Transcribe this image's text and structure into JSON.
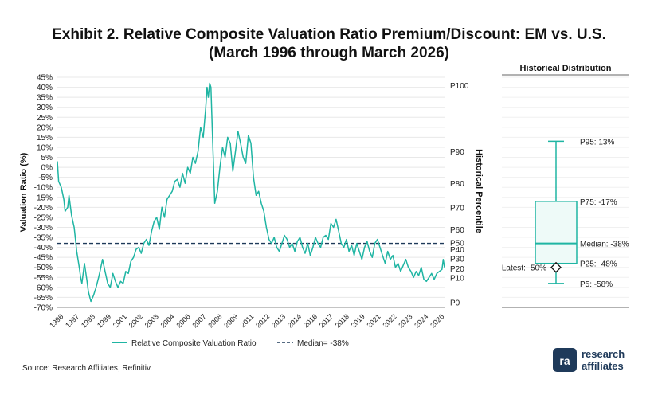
{
  "title_line1": "Exhibit 2. Relative Composite Valuation Ratio Premium/Discount: EM vs. U.S.",
  "title_line2": "(March 1996 through March 2026)",
  "source": "Source: Research Affiliates, Refinitiv.",
  "logo": {
    "line1": "research",
    "line2": "affiliates",
    "mark": "ra"
  },
  "colors": {
    "series": "#1fb5a3",
    "median": "#1f3a5a",
    "axis": "#555555",
    "grid": "#e8e8e8"
  },
  "chart_data": [
    {
      "type": "line",
      "ylabel": "Valuation Ratio (%)",
      "y2label": "Historical Percentile",
      "ylim": [
        -70,
        45
      ],
      "yticks": [
        "45%",
        "40%",
        "35%",
        "30%",
        "25%",
        "20%",
        "15%",
        "10%",
        "5%",
        "0%",
        "-5%",
        "-10%",
        "-15%",
        "-20%",
        "-25%",
        "-30%",
        "-35%",
        "-40%",
        "-45%",
        "-50%",
        "-55%",
        "-60%",
        "-65%",
        "-70%"
      ],
      "xticks": [
        "1996",
        "1997",
        "1998",
        "1999",
        "2001",
        "2002",
        "2003",
        "2004",
        "2006",
        "2007",
        "2008",
        "2009",
        "2011",
        "2012",
        "2013",
        "2014",
        "2016",
        "2017",
        "2018",
        "2019",
        "2021",
        "2022",
        "2023",
        "2024",
        "2026"
      ],
      "xlim": [
        1996.2,
        2026.2
      ],
      "percentile_labels": [
        {
          "label": "P100",
          "y": 41
        },
        {
          "label": "P90",
          "y": 8
        },
        {
          "label": "P80",
          "y": -8
        },
        {
          "label": "P70",
          "y": -20
        },
        {
          "label": "P60",
          "y": -31
        },
        {
          "label": "P50",
          "y": -37.5
        },
        {
          "label": "P40",
          "y": -41
        },
        {
          "label": "P30",
          "y": -45.5
        },
        {
          "label": "P20",
          "y": -50.5
        },
        {
          "label": "P10",
          "y": -55
        },
        {
          "label": "P0",
          "y": -67.5
        }
      ],
      "series": [
        {
          "name": "Relative Composite Valuation Ratio",
          "x": [
            1996.2,
            1996.3,
            1996.5,
            1996.7,
            1996.8,
            1997.0,
            1997.1,
            1997.3,
            1997.5,
            1997.7,
            1997.9,
            1998.0,
            1998.1,
            1998.3,
            1998.5,
            1998.6,
            1998.8,
            1999.0,
            1999.2,
            1999.4,
            1999.5,
            1999.7,
            1999.9,
            2000.1,
            2000.3,
            2000.5,
            2000.7,
            2000.9,
            2001.1,
            2001.3,
            2001.5,
            2001.7,
            2001.9,
            2002.1,
            2002.3,
            2002.5,
            2002.7,
            2002.9,
            2003.1,
            2003.3,
            2003.5,
            2003.7,
            2003.9,
            2004.1,
            2004.3,
            2004.5,
            2004.7,
            2004.9,
            2005.1,
            2005.3,
            2005.5,
            2005.7,
            2005.9,
            2006.1,
            2006.3,
            2006.5,
            2006.7,
            2006.9,
            2007.1,
            2007.3,
            2007.5,
            2007.7,
            2007.8,
            2007.9,
            2008.0,
            2008.1,
            2008.2,
            2008.4,
            2008.6,
            2008.8,
            2009.0,
            2009.2,
            2009.4,
            2009.6,
            2009.8,
            2010.0,
            2010.2,
            2010.4,
            2010.6,
            2010.8,
            2011.0,
            2011.2,
            2011.4,
            2011.6,
            2011.8,
            2012.0,
            2012.2,
            2012.4,
            2012.6,
            2012.8,
            2013.0,
            2013.2,
            2013.4,
            2013.6,
            2013.8,
            2014.0,
            2014.2,
            2014.4,
            2014.6,
            2014.8,
            2015.0,
            2015.2,
            2015.4,
            2015.6,
            2015.8,
            2016.0,
            2016.2,
            2016.4,
            2016.6,
            2016.8,
            2017.0,
            2017.2,
            2017.4,
            2017.6,
            2017.8,
            2018.0,
            2018.2,
            2018.4,
            2018.6,
            2018.8,
            2019.0,
            2019.2,
            2019.4,
            2019.6,
            2019.8,
            2020.0,
            2020.2,
            2020.4,
            2020.6,
            2020.8,
            2021.0,
            2021.2,
            2021.4,
            2021.6,
            2021.8,
            2022.0,
            2022.2,
            2022.4,
            2022.6,
            2022.8,
            2023.0,
            2023.2,
            2023.4,
            2023.6,
            2023.8,
            2024.0,
            2024.2,
            2024.4,
            2024.6,
            2024.8,
            2025.0,
            2025.2,
            2025.4,
            2025.6,
            2025.8,
            2026.0,
            2026.1,
            2026.2
          ],
          "values": [
            3,
            -7,
            -10,
            -16,
            -22,
            -20,
            -14,
            -24,
            -30,
            -42,
            -50,
            -55,
            -58,
            -48,
            -57,
            -62,
            -67,
            -64,
            -60,
            -55,
            -52,
            -46,
            -52,
            -58,
            -60,
            -53,
            -57,
            -60,
            -57,
            -58,
            -52,
            -53,
            -47,
            -45,
            -41,
            -40,
            -43,
            -38,
            -36,
            -39,
            -32,
            -27,
            -25,
            -31,
            -20,
            -25,
            -16,
            -14,
            -12,
            -7,
            -6,
            -10,
            -3,
            -8,
            0,
            -3,
            5,
            2,
            8,
            20,
            15,
            30,
            40,
            35,
            42,
            40,
            20,
            -18,
            -12,
            0,
            10,
            5,
            15,
            12,
            -2,
            8,
            18,
            12,
            5,
            2,
            16,
            12,
            -5,
            -14,
            -12,
            -18,
            -22,
            -30,
            -36,
            -38,
            -35,
            -40,
            -42,
            -38,
            -34,
            -36,
            -40,
            -38,
            -42,
            -37,
            -35,
            -40,
            -43,
            -38,
            -44,
            -40,
            -35,
            -38,
            -40,
            -35,
            -34,
            -36,
            -28,
            -30,
            -26,
            -32,
            -38,
            -40,
            -36,
            -42,
            -39,
            -44,
            -38,
            -42,
            -46,
            -40,
            -37,
            -42,
            -45,
            -38,
            -36,
            -40,
            -44,
            -48,
            -42,
            -46,
            -44,
            -50,
            -48,
            -52,
            -49,
            -46,
            -50,
            -52,
            -55,
            -52,
            -54,
            -50,
            -56,
            -57,
            -55,
            -53,
            -56,
            -53,
            -52,
            -51,
            -46,
            -50
          ]
        },
        {
          "name": "Median= -38%",
          "value": -38
        }
      ],
      "legend": {
        "position": "bottom"
      }
    },
    {
      "type": "boxplot",
      "title": "Historical Distribution",
      "ylim": [
        -70,
        45
      ],
      "stats": {
        "p5": -58,
        "p25": -48,
        "median": -38,
        "p75": -17,
        "p95": 13,
        "latest": -50
      },
      "labels": {
        "p95": "P95: 13%",
        "p75": "P75: -17%",
        "median": "Median: -38%",
        "p25": "P25: -48%",
        "p5": "P5: -58%",
        "latest": "Latest: -50%"
      }
    }
  ]
}
